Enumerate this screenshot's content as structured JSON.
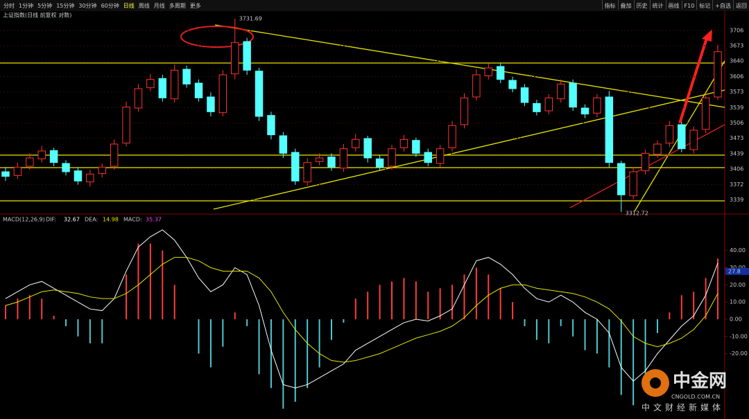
{
  "toolbar": {
    "periods": [
      "分时",
      "1分钟",
      "5分钟",
      "15分钟",
      "30分钟",
      "60分钟",
      "日线",
      "周线",
      "月线",
      "多周期",
      "更多"
    ],
    "active": "日线",
    "tools": [
      "指标",
      "叠加",
      "历史",
      "统计",
      "画线",
      "F10",
      "标记",
      "+自选",
      "返回"
    ]
  },
  "chart_data": [
    {
      "type": "candlestick",
      "title": "上证指数(日线 前复权 对数)",
      "up_color": "#ff3232",
      "down_color": "#54ffff",
      "grid": true,
      "open": [
        3400,
        3392,
        3412,
        3428,
        3446,
        3418,
        3402,
        3378,
        3396,
        3412,
        3462,
        3538,
        3582,
        3602,
        3558,
        3622,
        3592,
        3562,
        3528,
        3612,
        3682,
        3618,
        3522,
        3478,
        3442,
        3378,
        3422,
        3432,
        3408,
        3452,
        3472,
        3428,
        3412,
        3452,
        3468,
        3442,
        3418,
        3452,
        3502,
        3562,
        3608,
        3628,
        3598,
        3582,
        3548,
        3532,
        3558,
        3592,
        3538,
        3527,
        3562,
        3418,
        3348,
        3402,
        3438,
        3462,
        3502,
        3448,
        3492,
        3562
      ],
      "high": [
        3410,
        3420,
        3440,
        3456,
        3452,
        3425,
        3410,
        3404,
        3418,
        3470,
        3552,
        3590,
        3612,
        3610,
        3632,
        3630,
        3600,
        3572,
        3620,
        3731.69,
        3690,
        3625,
        3530,
        3486,
        3450,
        3430,
        3440,
        3440,
        3460,
        3482,
        3478,
        3436,
        3458,
        3480,
        3474,
        3450,
        3458,
        3510,
        3570,
        3622,
        3635,
        3636,
        3606,
        3590,
        3556,
        3568,
        3600,
        3600,
        3546,
        3568,
        3575,
        3424,
        3410,
        3448,
        3468,
        3510,
        3508,
        3498,
        3570,
        3675
      ],
      "low": [
        3380,
        3384,
        3404,
        3420,
        3412,
        3392,
        3372,
        3368,
        3388,
        3404,
        3455,
        3530,
        3575,
        3552,
        3550,
        3582,
        3552,
        3520,
        3520,
        3600,
        3610,
        3510,
        3470,
        3430,
        3372,
        3370,
        3414,
        3402,
        3400,
        3444,
        3420,
        3402,
        3404,
        3444,
        3432,
        3412,
        3410,
        3444,
        3494,
        3554,
        3600,
        3592,
        3572,
        3542,
        3522,
        3524,
        3550,
        3532,
        3516,
        3518,
        3410,
        3312.72,
        3340,
        3394,
        3430,
        3454,
        3442,
        3440,
        3484,
        3555
      ],
      "close": [
        3390,
        3410,
        3430,
        3445,
        3420,
        3400,
        3380,
        3395,
        3410,
        3460,
        3540,
        3580,
        3600,
        3560,
        3620,
        3590,
        3560,
        3530,
        3610,
        3680,
        3620,
        3520,
        3480,
        3440,
        3380,
        3420,
        3430,
        3410,
        3450,
        3470,
        3430,
        3410,
        3450,
        3470,
        3440,
        3420,
        3450,
        3500,
        3560,
        3610,
        3625,
        3600,
        3580,
        3550,
        3530,
        3560,
        3590,
        3540,
        3525,
        3560,
        3420,
        3350,
        3400,
        3440,
        3460,
        3500,
        3450,
        3490,
        3560,
        3660
      ],
      "ylim": [
        3310,
        3742
      ],
      "yticks": [
        3339,
        3372,
        3406,
        3439,
        3473,
        3506,
        3539,
        3573,
        3606,
        3640,
        3673,
        3706
      ]
    },
    {
      "type": "macd",
      "indicator": "MACD(12,26,9)",
      "pos_color": "#ff3c3c",
      "neg_color": "#4fc8d0",
      "series": [
        {
          "name": "DIF:",
          "color": "#ffffff",
          "values": [
            12,
            16,
            20,
            22,
            18,
            14,
            10,
            6,
            5,
            12,
            28,
            42,
            48,
            52,
            46,
            36,
            24,
            16,
            20,
            30,
            26,
            8,
            -18,
            -38,
            -40,
            -38,
            -34,
            -30,
            -26,
            -18,
            -14,
            -10,
            -6,
            -2,
            0,
            -1,
            2,
            6,
            20,
            34,
            36,
            32,
            26,
            18,
            12,
            10,
            14,
            10,
            4,
            0,
            -8,
            -28,
            -36,
            -30,
            -20,
            -12,
            -4,
            2,
            14,
            32.67
          ]
        },
        {
          "name": "DEA:",
          "color": "#e6e600",
          "values": [
            8,
            10,
            13,
            16,
            17,
            16,
            15,
            13,
            12,
            12,
            15,
            20,
            26,
            32,
            36,
            36,
            34,
            30,
            28,
            28,
            28,
            24,
            16,
            4,
            -6,
            -14,
            -20,
            -24,
            -25,
            -24,
            -22,
            -20,
            -17,
            -14,
            -11,
            -9,
            -7,
            -4,
            1,
            8,
            14,
            18,
            20,
            20,
            18,
            17,
            16,
            15,
            13,
            10,
            6,
            -1,
            -10,
            -14,
            -16,
            -14,
            -11,
            -6,
            2,
            14.98
          ]
        },
        {
          "name": "MACD:",
          "color": "#ff40ff",
          "values": [
            8,
            12,
            14,
            12,
            2,
            -4,
            -10,
            -14,
            -14,
            0,
            26,
            44,
            44,
            40,
            20,
            0,
            -20,
            -28,
            -16,
            4,
            -4,
            -32,
            -40,
            -52,
            -48,
            -40,
            -28,
            -12,
            -2,
            12,
            16,
            20,
            22,
            24,
            22,
            16,
            18,
            20,
            26,
            30,
            26,
            18,
            10,
            -4,
            -12,
            -14,
            -4,
            -10,
            -18,
            -20,
            -28,
            -44,
            -50,
            -32,
            -8,
            4,
            14,
            16,
            24,
            35.37
          ]
        }
      ],
      "marker": 27.8,
      "ylim": [
        -56,
        60
      ],
      "yticks": [
        {
          "value": -20,
          "label": "-20.00"
        },
        {
          "value": -10,
          "label": "-10.00"
        },
        {
          "value": 0,
          "label": "0.00"
        },
        {
          "value": 10,
          "label": "10.00"
        },
        {
          "value": 20,
          "label": "20.00"
        },
        {
          "value": 30,
          "label": "30.00"
        },
        {
          "value": 40,
          "label": "40.00"
        }
      ]
    }
  ],
  "logo": {
    "name": "中金网",
    "domain": "CNGOLD.COM.CN",
    "slogan": "中文财经新媒体"
  }
}
